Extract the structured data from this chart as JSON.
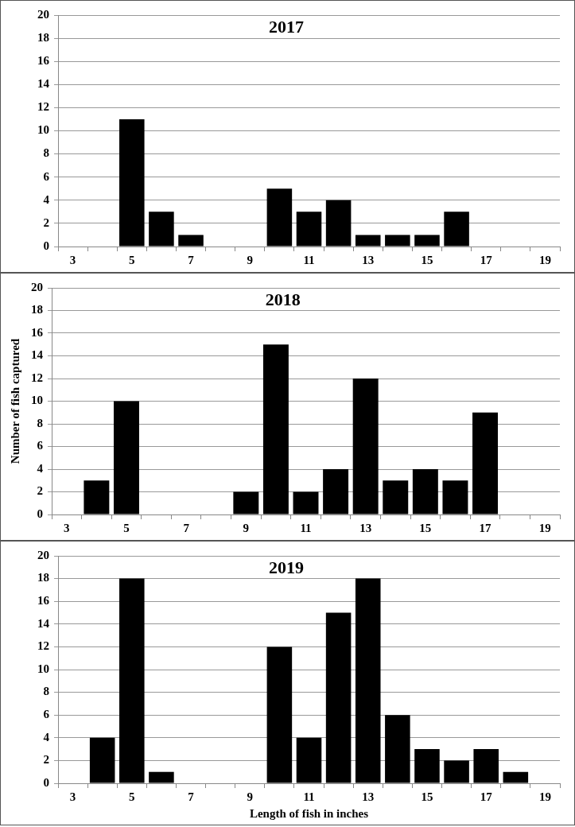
{
  "chart_data": [
    {
      "type": "bar",
      "title": "2017",
      "categories": [
        "3",
        null,
        "5",
        null,
        "7",
        null,
        "9",
        null,
        "11",
        null,
        "13",
        null,
        "15",
        null,
        "17",
        null,
        "19"
      ],
      "values": [
        0,
        0,
        11,
        3,
        1,
        0,
        0,
        5,
        3,
        4,
        1,
        1,
        1,
        3,
        0,
        0,
        0
      ],
      "color": "#000000",
      "ylim": [
        0,
        20
      ],
      "yticks": [
        0,
        2,
        4,
        6,
        8,
        10,
        12,
        14,
        16,
        18,
        20
      ],
      "grid": "y"
    },
    {
      "type": "bar",
      "title": "2018",
      "ylabel": "Number of fish captured",
      "categories": [
        "3",
        null,
        "5",
        null,
        "7",
        null,
        "9",
        null,
        "11",
        null,
        "13",
        null,
        "15",
        null,
        "17",
        null,
        "19"
      ],
      "values": [
        0,
        3,
        10,
        0,
        0,
        0,
        2,
        15,
        2,
        4,
        12,
        3,
        4,
        3,
        9,
        0,
        0
      ],
      "color": "#000000",
      "ylim": [
        0,
        20
      ],
      "yticks": [
        0,
        2,
        4,
        6,
        8,
        10,
        12,
        14,
        16,
        18,
        20
      ],
      "grid": "y"
    },
    {
      "type": "bar",
      "title": "2019",
      "xlabel": "Length of fish in inches",
      "categories": [
        "3",
        null,
        "5",
        null,
        "7",
        null,
        "9",
        null,
        "11",
        null,
        "13",
        null,
        "15",
        null,
        "17",
        null,
        "19"
      ],
      "values": [
        0,
        4,
        18,
        1,
        0,
        0,
        0,
        12,
        4,
        15,
        18,
        6,
        3,
        2,
        3,
        1,
        0
      ],
      "color": "#000000",
      "ylim": [
        0,
        20
      ],
      "yticks": [
        0,
        2,
        4,
        6,
        8,
        10,
        12,
        14,
        16,
        18,
        20
      ],
      "grid": "y"
    }
  ]
}
